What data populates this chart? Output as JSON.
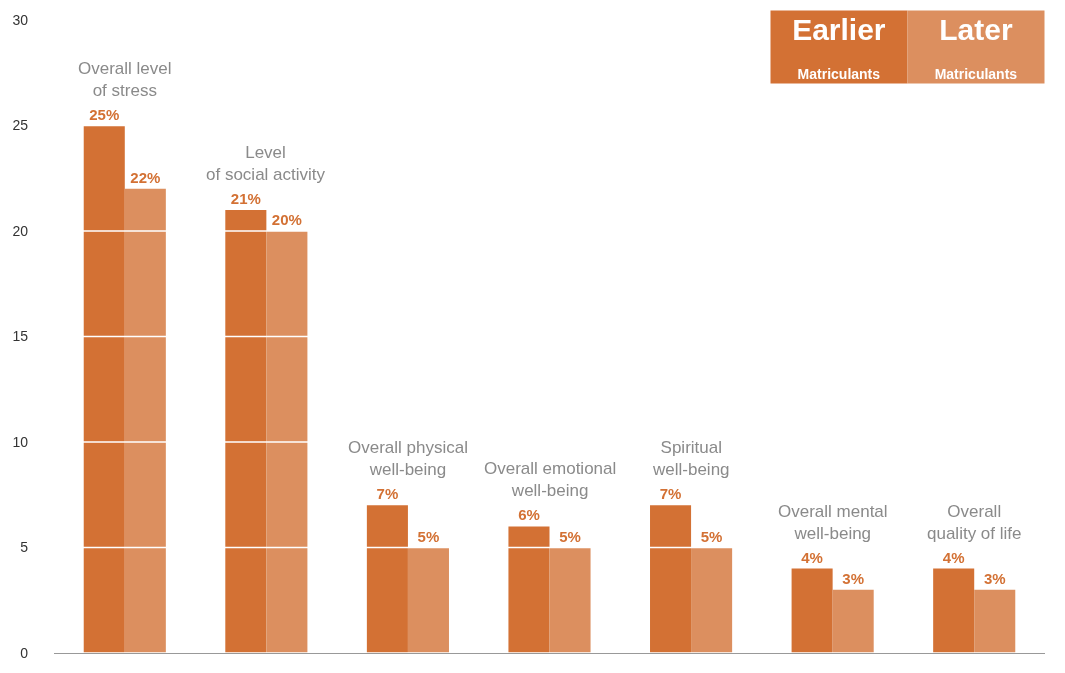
{
  "chart_data": {
    "type": "bar",
    "categories": [
      "Overall level\nof stress",
      "Level\nof social activity",
      "Overall physical\nwell-being",
      "Overall emotional\nwell-being",
      "Spiritual\nwell-being",
      "Overall mental\nwell-being",
      "Overall\nquality of life"
    ],
    "series": [
      {
        "name": "Earlier\nMatriculants",
        "color": "#d37134",
        "values": [
          25,
          21,
          7,
          6,
          7,
          4,
          4
        ],
        "value_labels": [
          "25%",
          "21%",
          "7%",
          "6%",
          "7%",
          "4%",
          "4%"
        ]
      },
      {
        "name": "Later\nMatriculants",
        "color": "#dc8f5f",
        "values": [
          22,
          20,
          5,
          5,
          5,
          3,
          3
        ],
        "value_labels": [
          "22%",
          "20%",
          "5%",
          "5%",
          "5%",
          "3%",
          "3%"
        ]
      }
    ],
    "ylim": [
      0,
      30
    ],
    "yticks": [
      0,
      5,
      10,
      15,
      20,
      25,
      30
    ],
    "grid": "y",
    "legend": "top right",
    "tick_labels": "y"
  }
}
